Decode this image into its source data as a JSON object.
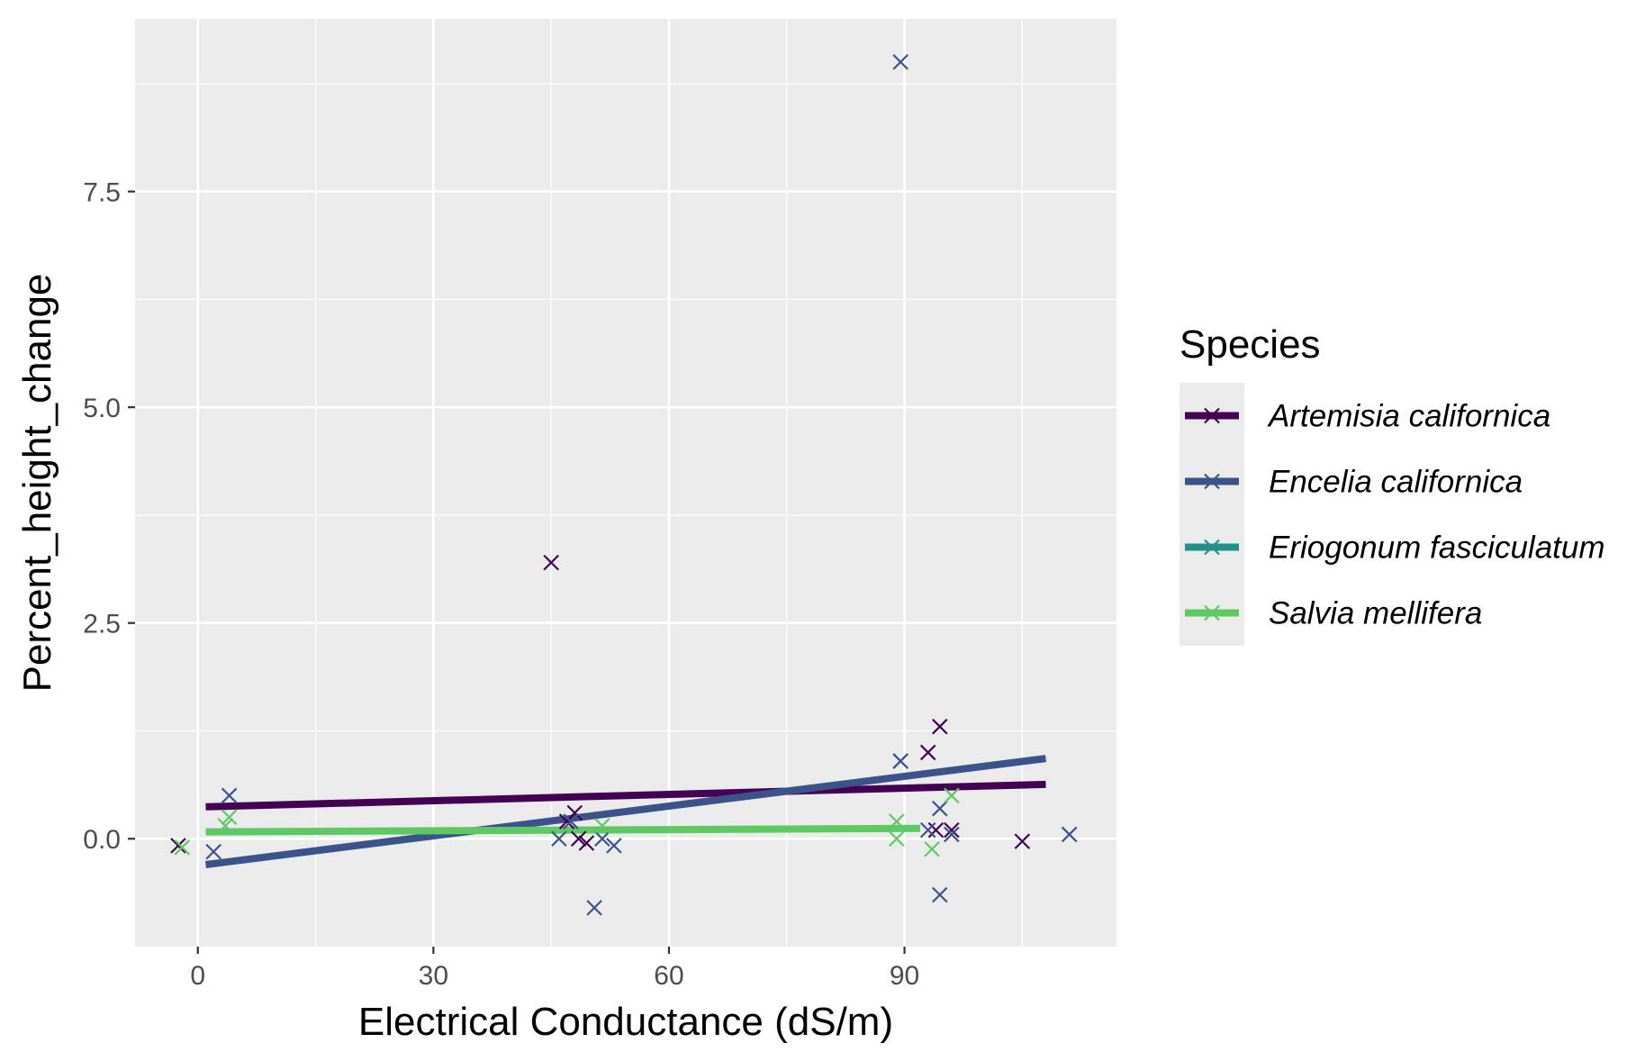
{
  "chart_data": {
    "type": "scatter",
    "xlabel": "Electrical Conductance (dS/m)",
    "ylabel": "Percent_height_change",
    "xlim": [
      -8,
      117
    ],
    "ylim": [
      -1.25,
      9.5
    ],
    "x_ticks": [
      0,
      30,
      60,
      90
    ],
    "x_tick_labels": [
      "0",
      "30",
      "60",
      "90"
    ],
    "y_ticks": [
      0,
      2.5,
      5,
      7.5
    ],
    "y_tick_labels": [
      "0.0",
      "2.5",
      "5.0",
      "7.5"
    ],
    "grid": true,
    "background": "#ebebeb",
    "legend": {
      "title": "Species",
      "position": "right"
    },
    "series": [
      {
        "name": "Artemisia californica",
        "color": "#440154",
        "marker": "x",
        "trend": [
          [
            1,
            0.37
          ],
          [
            108,
            0.63
          ]
        ],
        "points": [
          [
            -2.5,
            -0.08
          ],
          [
            45,
            3.2
          ],
          [
            47,
            0.2
          ],
          [
            48,
            0.3
          ],
          [
            48.5,
            0.0
          ],
          [
            49.5,
            -0.05
          ],
          [
            89.5,
            0.9
          ],
          [
            93,
            1.0
          ],
          [
            94.5,
            1.3
          ],
          [
            94,
            0.1
          ],
          [
            96,
            0.1
          ],
          [
            105,
            -0.03
          ]
        ]
      },
      {
        "name": "Encelia californica",
        "color": "#3b528b",
        "marker": "x",
        "trend": [
          [
            1,
            -0.3
          ],
          [
            108,
            0.93
          ]
        ],
        "points": [
          [
            2,
            -0.15
          ],
          [
            4,
            0.5
          ],
          [
            46,
            0.0
          ],
          [
            47.5,
            0.2
          ],
          [
            50.5,
            -0.8
          ],
          [
            51.5,
            0.0
          ],
          [
            53,
            -0.08
          ],
          [
            89.5,
            9.0
          ],
          [
            89.5,
            0.9
          ],
          [
            93,
            0.1
          ],
          [
            94.5,
            0.35
          ],
          [
            94.5,
            -0.65
          ],
          [
            96,
            0.05
          ],
          [
            111,
            0.05
          ]
        ]
      },
      {
        "name": "Eriogonum fasciculatum",
        "color": "#21908c",
        "marker": "x",
        "trend": [],
        "points": []
      },
      {
        "name": "Salvia mellifera",
        "color": "#5ec962",
        "marker": "x",
        "trend": [
          [
            1,
            0.08
          ],
          [
            92,
            0.12
          ]
        ],
        "points": [
          [
            -2,
            -0.1
          ],
          [
            3.5,
            0.15
          ],
          [
            4,
            0.25
          ],
          [
            51.5,
            0.15
          ],
          [
            89,
            0.2
          ],
          [
            89,
            0.0
          ],
          [
            93.5,
            -0.12
          ],
          [
            96,
            0.5
          ]
        ]
      }
    ]
  }
}
